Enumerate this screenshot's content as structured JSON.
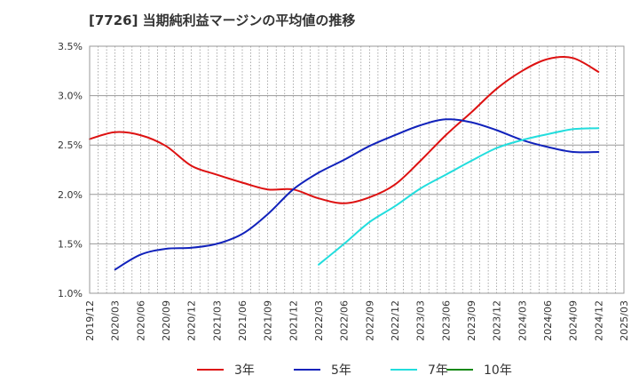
{
  "title": "[7726]  当期純利益マージンの平均値の推移",
  "chart_data": {
    "type": "line",
    "title": "[7726]  当期純利益マージンの平均値の推移",
    "x_ticks": [
      "2019/12",
      "2020/03",
      "2020/06",
      "2020/09",
      "2020/12",
      "2021/03",
      "2021/06",
      "2021/09",
      "2021/12",
      "2022/03",
      "2022/06",
      "2022/09",
      "2022/12",
      "2023/03",
      "2023/06",
      "2023/09",
      "2023/12",
      "2024/03",
      "2024/06",
      "2024/09",
      "2024/12",
      "2025/03"
    ],
    "y_ticks": [
      1.0,
      1.5,
      2.0,
      2.5,
      3.0,
      3.5
    ],
    "y_tick_labels": [
      "1.0%",
      "1.5%",
      "2.0%",
      "2.5%",
      "3.0%",
      "3.5%"
    ],
    "ylim": [
      1.0,
      3.5
    ],
    "xlabel": "",
    "ylabel": "",
    "grid": true,
    "legend_position": "bottom",
    "series": [
      {
        "name": "3年",
        "color": "#dd1111",
        "x": [
          "2019/12",
          "2020/03",
          "2020/06",
          "2020/09",
          "2020/12",
          "2021/03",
          "2021/06",
          "2021/09",
          "2021/12",
          "2022/03",
          "2022/06",
          "2022/09",
          "2022/12",
          "2023/03",
          "2023/06",
          "2023/09",
          "2023/12",
          "2024/03",
          "2024/06",
          "2024/09",
          "2024/12"
        ],
        "values": [
          2.56,
          2.63,
          2.6,
          2.49,
          2.29,
          2.2,
          2.12,
          2.05,
          2.05,
          1.96,
          1.91,
          1.97,
          2.1,
          2.34,
          2.6,
          2.83,
          3.07,
          3.25,
          3.37,
          3.38,
          3.24
        ]
      },
      {
        "name": "5年",
        "color": "#1122bb",
        "x": [
          "2020/03",
          "2020/06",
          "2020/09",
          "2020/12",
          "2021/03",
          "2021/06",
          "2021/09",
          "2021/12",
          "2022/03",
          "2022/06",
          "2022/09",
          "2022/12",
          "2023/03",
          "2023/06",
          "2023/09",
          "2023/12",
          "2024/03",
          "2024/06",
          "2024/09",
          "2024/12"
        ],
        "values": [
          1.24,
          1.39,
          1.45,
          1.46,
          1.5,
          1.6,
          1.8,
          2.05,
          2.22,
          2.35,
          2.49,
          2.6,
          2.7,
          2.76,
          2.73,
          2.65,
          2.55,
          2.48,
          2.43,
          2.43
        ]
      },
      {
        "name": "7年",
        "color": "#22dddd",
        "x": [
          "2022/03",
          "2022/06",
          "2022/09",
          "2022/12",
          "2023/03",
          "2023/06",
          "2023/09",
          "2023/12",
          "2024/03",
          "2024/06",
          "2024/09",
          "2024/12"
        ],
        "values": [
          1.29,
          1.5,
          1.72,
          1.88,
          2.06,
          2.2,
          2.34,
          2.47,
          2.55,
          2.61,
          2.66,
          2.67
        ]
      },
      {
        "name": "10年",
        "color": "#118811",
        "x": [],
        "values": []
      }
    ]
  }
}
